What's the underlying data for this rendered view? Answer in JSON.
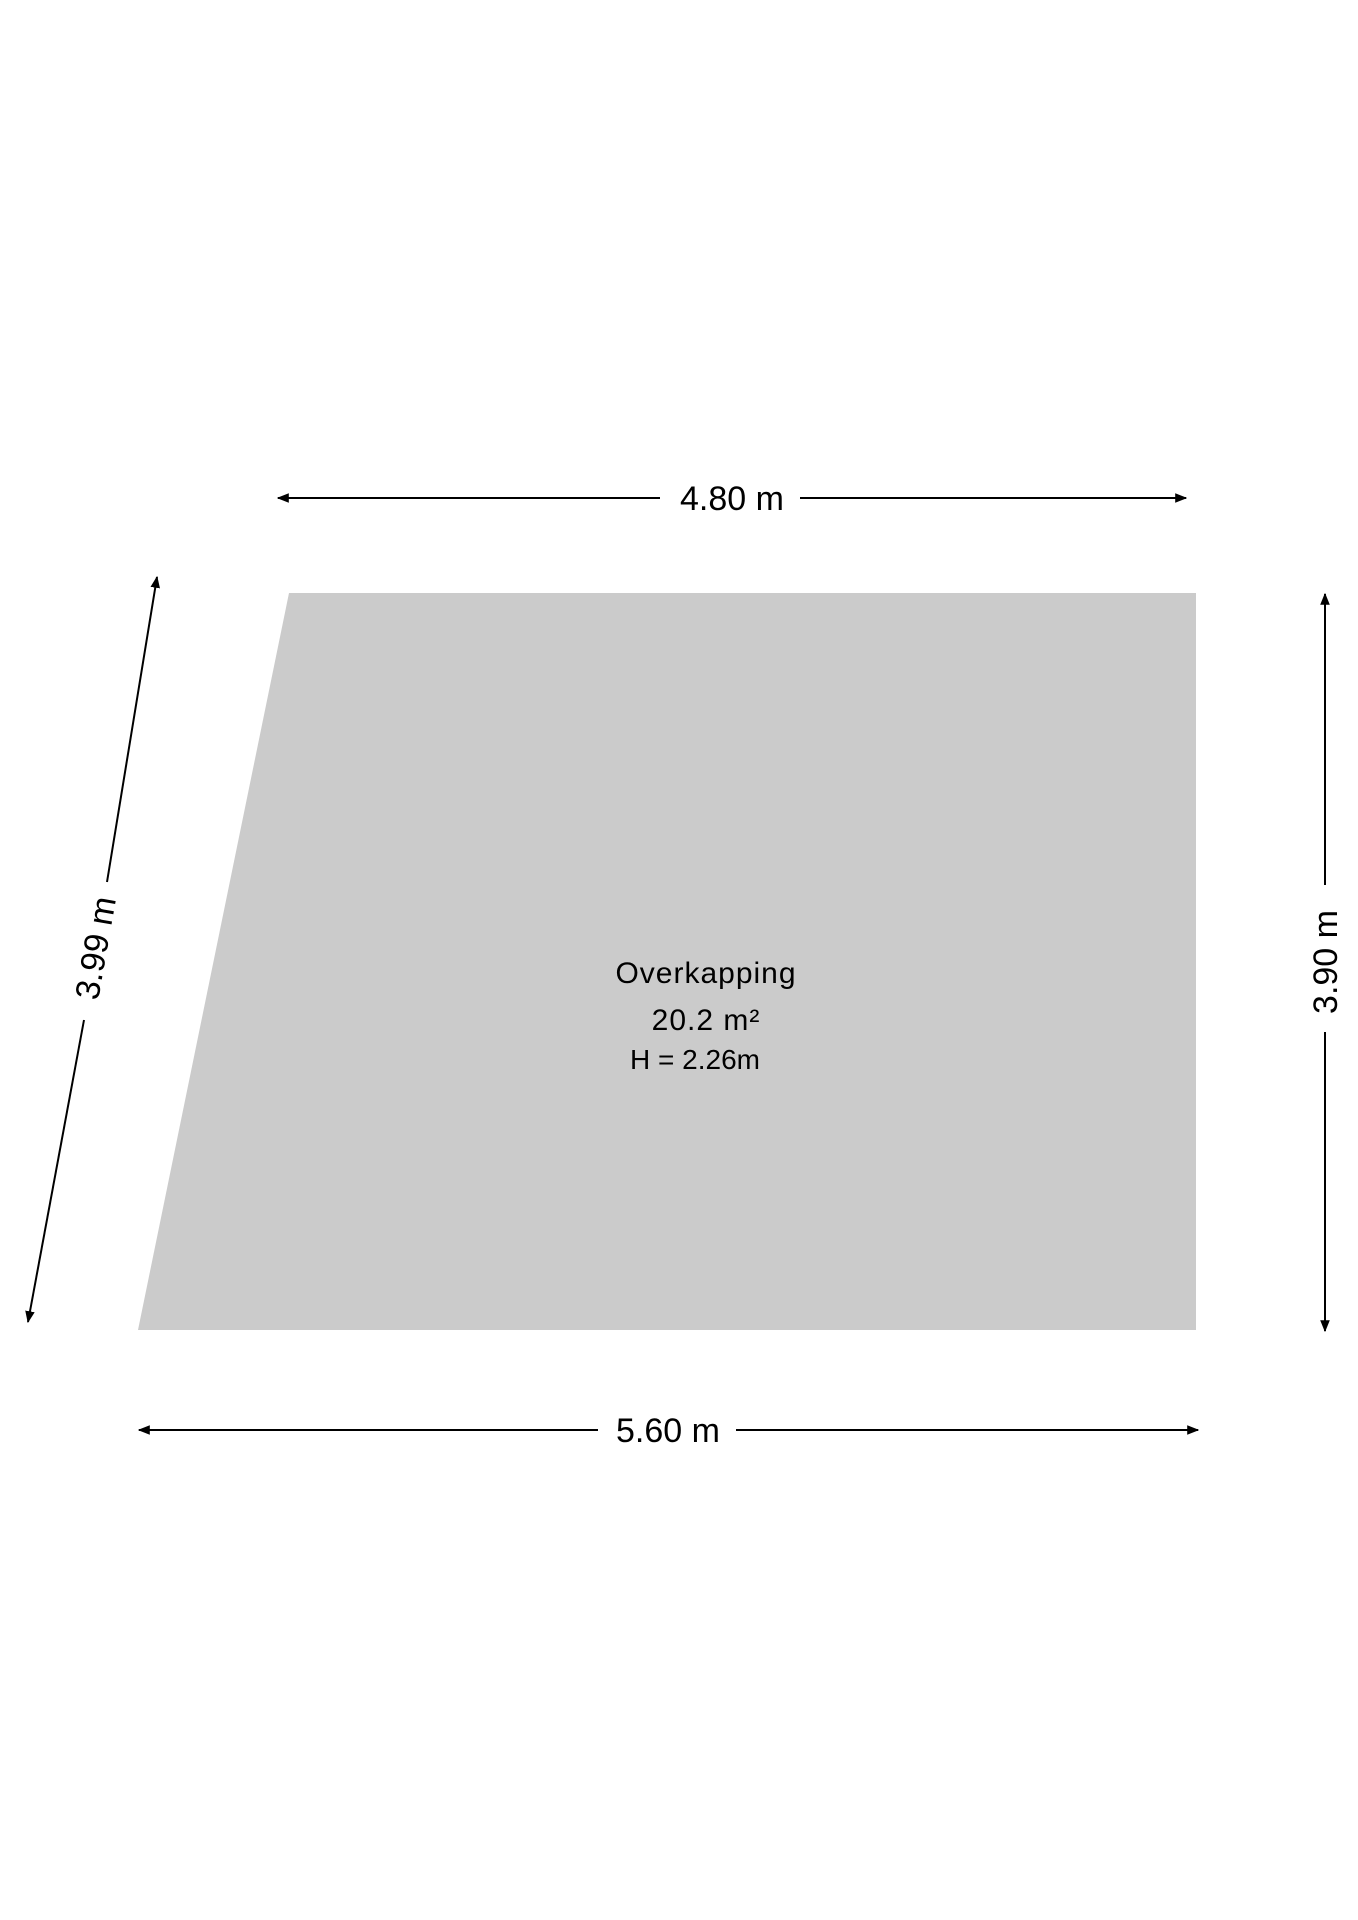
{
  "room": {
    "name": "Overkapping",
    "area": "20.2 m²",
    "height": "H = 2.26m",
    "fill_color": "#cbcbcb"
  },
  "dimensions": {
    "top": "4.80 m",
    "bottom": "5.60 m",
    "left": "3.99 m",
    "right": "3.90 m"
  }
}
